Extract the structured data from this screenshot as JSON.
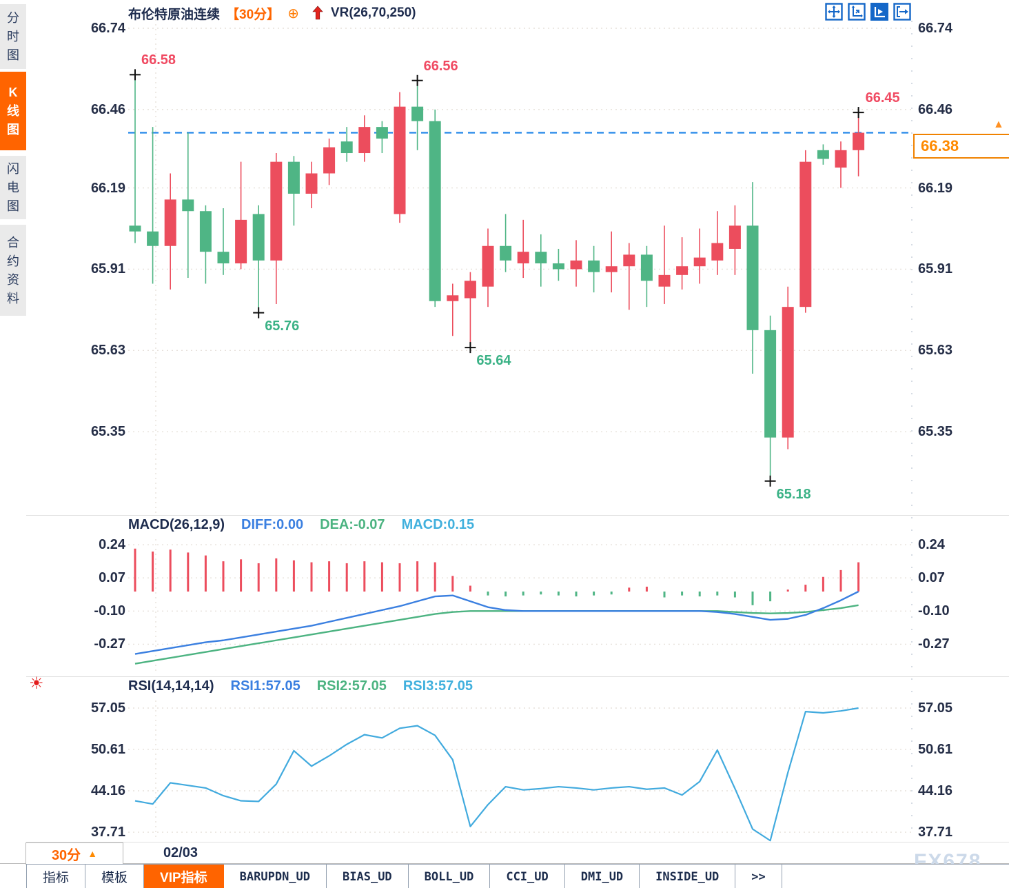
{
  "window": {
    "watermark": "FX678"
  },
  "colors": {
    "accent_orange": "#ff6400",
    "up_red": "#ec4d5d",
    "down_green": "#4fb585",
    "toolbar_blue": "#1467c8",
    "line_blue": "#3a7fe0",
    "line_green": "#4cb381",
    "line_cyan": "#41aade",
    "navy_text": "#1e2c4e",
    "current_price_line": "#1b82e8",
    "annotation_red": "#f04a62",
    "annotation_green": "#3bb286",
    "grid": "#e6e0da"
  },
  "icons": {
    "compare": "⊕",
    "price_marker": "▲",
    "dropdown_up": "▲",
    "alert": "☀"
  },
  "sidebar": {
    "items": [
      {
        "label": "分时图",
        "active": false
      },
      {
        "label": "K线图",
        "active": true
      },
      {
        "label": "闪电图",
        "active": false
      },
      {
        "label": "合约资料",
        "active": false
      }
    ]
  },
  "header": {
    "title": "布伦特原油连续",
    "interval": "【30分】",
    "compare_icon": "⊕",
    "vr_label": "VR(26,70,250)"
  },
  "toolbar": {
    "icons": [
      "pan-icon",
      "axis-range-icon",
      "auto-fit-icon",
      "exit-chart-icon"
    ]
  },
  "price_badge": {
    "value": "66.38"
  },
  "footer": {
    "interval_label": "30分",
    "date_label": "02/03"
  },
  "bottom_tabs": [
    {
      "label": "指标",
      "active": false
    },
    {
      "label": "模板",
      "active": false
    },
    {
      "label": "VIP指标",
      "active": true
    },
    {
      "label": "BARUPDN_UD",
      "active": false
    },
    {
      "label": "BIAS_UD",
      "active": false
    },
    {
      "label": "BOLL_UD",
      "active": false
    },
    {
      "label": "CCI_UD",
      "active": false
    },
    {
      "label": "DMI_UD",
      "active": false
    },
    {
      "label": "INSIDE_UD",
      "active": false
    },
    {
      "label": ">>",
      "active": false
    }
  ],
  "chart_data": [
    {
      "type": "candlestick",
      "symbol": "布伦特原油连续",
      "interval": "30分",
      "yticks": [
        66.74,
        66.46,
        66.19,
        65.91,
        65.63,
        65.35
      ],
      "ylim": [
        65.06,
        66.79
      ],
      "current_price": 66.38,
      "date_label": "02/03",
      "ohlc": [
        [
          66.06,
          66.58,
          66.0,
          66.04
        ],
        [
          66.04,
          66.4,
          65.86,
          65.99
        ],
        [
          65.99,
          66.24,
          65.84,
          66.15
        ],
        [
          66.15,
          66.38,
          65.88,
          66.11
        ],
        [
          66.11,
          66.13,
          65.86,
          65.97
        ],
        [
          65.97,
          66.12,
          65.89,
          65.93
        ],
        [
          65.93,
          66.28,
          65.91,
          66.08
        ],
        [
          66.1,
          66.13,
          65.76,
          65.94
        ],
        [
          65.94,
          66.31,
          65.79,
          66.28
        ],
        [
          66.28,
          66.3,
          66.06,
          66.17
        ],
        [
          66.17,
          66.28,
          66.12,
          66.24
        ],
        [
          66.24,
          66.36,
          66.2,
          66.33
        ],
        [
          66.35,
          66.4,
          66.28,
          66.31
        ],
        [
          66.31,
          66.44,
          66.28,
          66.4
        ],
        [
          66.4,
          66.42,
          66.31,
          66.36
        ],
        [
          66.1,
          66.52,
          66.07,
          66.47
        ],
        [
          66.47,
          66.56,
          66.32,
          66.42
        ],
        [
          66.42,
          66.46,
          65.78,
          65.8
        ],
        [
          65.8,
          65.86,
          65.68,
          65.82
        ],
        [
          65.81,
          65.9,
          65.64,
          65.87
        ],
        [
          65.85,
          66.05,
          65.78,
          65.99
        ],
        [
          65.99,
          66.1,
          65.9,
          65.94
        ],
        [
          65.93,
          66.08,
          65.88,
          65.97
        ],
        [
          65.97,
          66.03,
          65.85,
          65.93
        ],
        [
          65.93,
          65.98,
          65.87,
          65.91
        ],
        [
          65.91,
          66.01,
          65.85,
          65.94
        ],
        [
          65.94,
          65.99,
          65.83,
          65.9
        ],
        [
          65.9,
          66.04,
          65.83,
          65.92
        ],
        [
          65.92,
          66.0,
          65.77,
          65.96
        ],
        [
          65.96,
          65.99,
          65.78,
          65.87
        ],
        [
          65.85,
          66.06,
          65.79,
          65.89
        ],
        [
          65.89,
          66.02,
          65.84,
          65.92
        ],
        [
          65.92,
          66.05,
          65.86,
          65.95
        ],
        [
          65.94,
          66.11,
          65.89,
          66.0
        ],
        [
          65.98,
          66.13,
          65.89,
          66.06
        ],
        [
          66.06,
          66.21,
          65.55,
          65.7
        ],
        [
          65.7,
          65.75,
          65.18,
          65.33
        ],
        [
          65.33,
          65.85,
          65.29,
          65.78
        ],
        [
          65.78,
          66.32,
          65.76,
          66.28
        ],
        [
          66.32,
          66.34,
          66.27,
          66.29
        ],
        [
          66.26,
          66.35,
          66.19,
          66.32
        ],
        [
          66.32,
          66.45,
          66.23,
          66.38
        ]
      ],
      "annotations": [
        {
          "index": 0,
          "price": 66.58,
          "kind": "high",
          "label": "66.58"
        },
        {
          "index": 7,
          "price": 65.76,
          "kind": "low",
          "label": "65.76"
        },
        {
          "index": 16,
          "price": 66.56,
          "kind": "high",
          "label": "66.56"
        },
        {
          "index": 19,
          "price": 65.64,
          "kind": "low",
          "label": "65.64"
        },
        {
          "index": 36,
          "price": 65.18,
          "kind": "low",
          "label": "65.18"
        },
        {
          "index": 41,
          "price": 66.45,
          "kind": "high",
          "label": "66.45"
        }
      ]
    },
    {
      "type": "macd",
      "legend": [
        "MACD(26,12,9)",
        "DIFF:0.00",
        "DEA:-0.07",
        "MACD:0.15"
      ],
      "yticks": [
        0.24,
        0.07,
        -0.1,
        -0.27
      ],
      "hist": [
        0.22,
        0.205,
        0.215,
        0.2,
        0.185,
        0.155,
        0.165,
        0.145,
        0.17,
        0.16,
        0.15,
        0.155,
        0.145,
        0.155,
        0.15,
        0.145,
        0.155,
        0.15,
        0.08,
        0.03,
        -0.02,
        -0.025,
        -0.02,
        -0.015,
        -0.02,
        -0.025,
        -0.02,
        -0.015,
        0.02,
        0.025,
        -0.03,
        -0.02,
        -0.025,
        -0.02,
        -0.03,
        -0.07,
        -0.05,
        0.01,
        0.035,
        0.075,
        0.11,
        0.15
      ],
      "diff": [
        -0.32,
        -0.305,
        -0.29,
        -0.275,
        -0.26,
        -0.25,
        -0.235,
        -0.22,
        -0.205,
        -0.19,
        -0.175,
        -0.155,
        -0.135,
        -0.115,
        -0.095,
        -0.075,
        -0.05,
        -0.025,
        -0.02,
        -0.05,
        -0.08,
        -0.095,
        -0.1,
        -0.1,
        -0.1,
        -0.1,
        -0.1,
        -0.1,
        -0.1,
        -0.1,
        -0.1,
        -0.1,
        -0.1,
        -0.105,
        -0.115,
        -0.13,
        -0.145,
        -0.14,
        -0.12,
        -0.085,
        -0.045,
        0.0
      ],
      "dea": [
        -0.37,
        -0.355,
        -0.34,
        -0.325,
        -0.31,
        -0.295,
        -0.28,
        -0.265,
        -0.25,
        -0.235,
        -0.22,
        -0.205,
        -0.19,
        -0.175,
        -0.16,
        -0.145,
        -0.13,
        -0.115,
        -0.105,
        -0.1,
        -0.1,
        -0.1,
        -0.1,
        -0.1,
        -0.1,
        -0.1,
        -0.1,
        -0.1,
        -0.1,
        -0.1,
        -0.1,
        -0.1,
        -0.1,
        -0.1,
        -0.105,
        -0.11,
        -0.112,
        -0.11,
        -0.105,
        -0.095,
        -0.085,
        -0.07
      ]
    },
    {
      "type": "rsi",
      "legend": [
        "RSI(14,14,14)",
        "RSI1:57.05",
        "RSI2:57.05",
        "RSI3:57.05"
      ],
      "yticks": [
        57.05,
        50.61,
        44.16,
        37.71
      ],
      "rsi": [
        42.6,
        42.1,
        45.4,
        45.0,
        44.6,
        43.4,
        42.6,
        42.5,
        45.2,
        50.4,
        48.0,
        49.6,
        51.4,
        52.9,
        52.4,
        53.9,
        54.3,
        52.8,
        49.0,
        38.6,
        42.0,
        44.8,
        44.3,
        44.5,
        44.8,
        44.6,
        44.3,
        44.6,
        44.8,
        44.4,
        44.6,
        43.5,
        45.6,
        50.5,
        44.5,
        38.2,
        36.4,
        47.0,
        56.5,
        56.3,
        56.6,
        57.05
      ]
    }
  ]
}
